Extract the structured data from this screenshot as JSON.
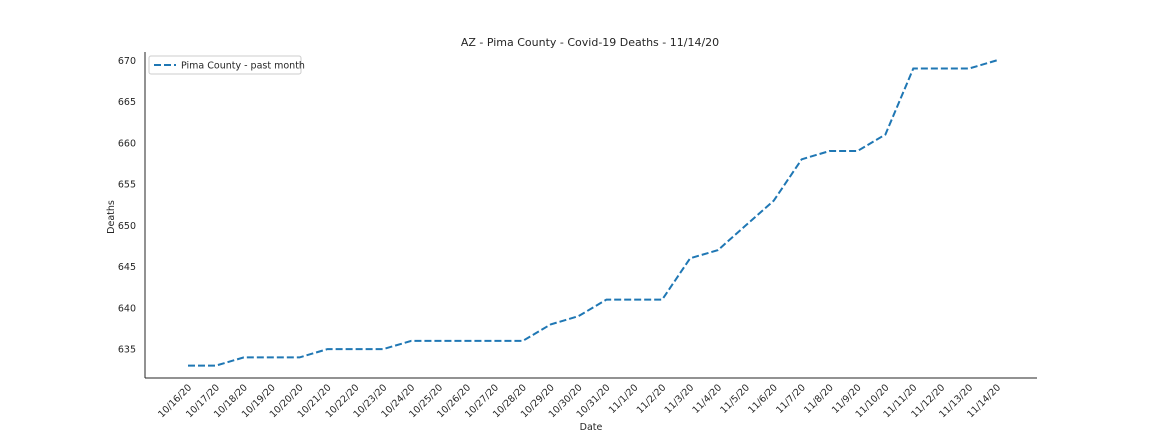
{
  "chart_data": {
    "type": "line",
    "title": "AZ - Pima County - Covid-19 Deaths - 11/14/20",
    "xlabel": "Date",
    "ylabel": "Deaths",
    "ylim": [
      631.5,
      671
    ],
    "y_ticks": [
      635,
      640,
      645,
      650,
      655,
      660,
      665,
      670
    ],
    "grid": false,
    "legend_position": "top-left",
    "categories": [
      "10/16/20",
      "10/17/20",
      "10/18/20",
      "10/19/20",
      "10/20/20",
      "10/21/20",
      "10/22/20",
      "10/23/20",
      "10/24/20",
      "10/25/20",
      "10/26/20",
      "10/27/20",
      "10/28/20",
      "10/29/20",
      "10/30/20",
      "10/31/20",
      "11/1/20",
      "11/2/20",
      "11/3/20",
      "11/4/20",
      "11/5/20",
      "11/6/20",
      "11/7/20",
      "11/8/20",
      "11/9/20",
      "11/10/20",
      "11/11/20",
      "11/12/20",
      "11/13/20",
      "11/14/20"
    ],
    "series": [
      {
        "name": "Pima County - past month",
        "color": "#1f77b4",
        "line_style": "dashed",
        "values": [
          633,
          633,
          634,
          634,
          634,
          635,
          635,
          635,
          636,
          636,
          636,
          636,
          636,
          638,
          639,
          641,
          641,
          641,
          646,
          647,
          650,
          653,
          658,
          659,
          659,
          661,
          669,
          669,
          669,
          670
        ]
      }
    ]
  }
}
